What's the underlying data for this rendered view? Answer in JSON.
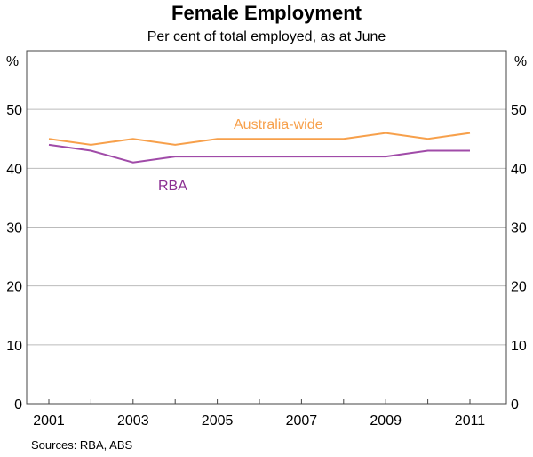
{
  "chart_data": {
    "type": "line",
    "title": "Female Employment",
    "subtitle": "Per cent of total employed, as at June",
    "ylabel_left": "%",
    "ylabel_right": "%",
    "ylim": [
      0,
      60
    ],
    "yticks": [
      0,
      10,
      20,
      30,
      40,
      50
    ],
    "xticks": [
      "2001",
      "2003",
      "2005",
      "2007",
      "2009",
      "2011"
    ],
    "x": [
      2001,
      2002,
      2003,
      2004,
      2005,
      2006,
      2007,
      2008,
      2009,
      2010,
      2011
    ],
    "series": [
      {
        "name": "Australia-wide",
        "color": "#f7a04b",
        "values": [
          45,
          44,
          45,
          44,
          45,
          45,
          45,
          45,
          46,
          45,
          46
        ]
      },
      {
        "name": "RBA",
        "color": "#a04ba8",
        "values": [
          44,
          43,
          41,
          42,
          42,
          42,
          42,
          42,
          42,
          43,
          43
        ]
      }
    ],
    "source": "Sources: RBA, ABS",
    "grid": true
  }
}
